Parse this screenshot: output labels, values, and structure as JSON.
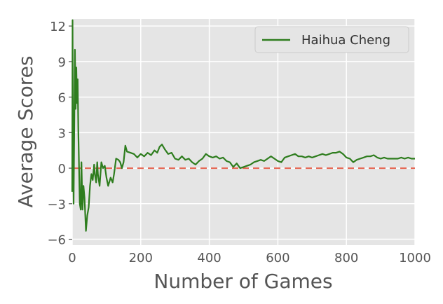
{
  "chart_data": {
    "type": "line",
    "title": "",
    "xlabel": "Number of Games",
    "ylabel": "Average Scores",
    "xlim": [
      0,
      1000
    ],
    "ylim": [
      -6.5,
      12.6
    ],
    "xticks": [
      0,
      200,
      400,
      600,
      800,
      1000
    ],
    "yticks": [
      -6,
      -3,
      0,
      3,
      6,
      9,
      12
    ],
    "ytick_labels": [
      "−6",
      "−3",
      "0",
      "3",
      "6",
      "9",
      "12"
    ],
    "grid": true,
    "legend_position": "top-right",
    "background": "#e5e5e5",
    "reference_line": {
      "y": 0,
      "style": "dashed",
      "color": "#e24a33"
    },
    "series": [
      {
        "name": "Haihua Cheng",
        "color": "#2e7d1e",
        "x": [
          0,
          1,
          2,
          4,
          6,
          8,
          10,
          12,
          14,
          16,
          18,
          20,
          22,
          25,
          27,
          30,
          33,
          36,
          40,
          44,
          48,
          52,
          56,
          60,
          64,
          66,
          70,
          73,
          75,
          80,
          85,
          90,
          95,
          100,
          105,
          112,
          118,
          122,
          128,
          135,
          140,
          145,
          150,
          155,
          160,
          170,
          180,
          190,
          200,
          210,
          220,
          230,
          240,
          248,
          255,
          262,
          270,
          280,
          290,
          300,
          310,
          320,
          330,
          340,
          350,
          360,
          370,
          380,
          390,
          400,
          410,
          420,
          430,
          440,
          450,
          460,
          470,
          480,
          490,
          500,
          510,
          520,
          530,
          540,
          550,
          560,
          570,
          580,
          590,
          600,
          610,
          620,
          630,
          640,
          650,
          660,
          670,
          680,
          690,
          700,
          710,
          720,
          730,
          740,
          750,
          760,
          770,
          780,
          790,
          800,
          810,
          820,
          830,
          840,
          850,
          860,
          870,
          880,
          890,
          900,
          910,
          920,
          930,
          940,
          950,
          960,
          970,
          980,
          990,
          1000
        ],
        "y": [
          -2,
          12.5,
          3,
          -3,
          3,
          10,
          5,
          8.5,
          5.5,
          7.5,
          3,
          0,
          -3,
          -3.5,
          0.5,
          -3.5,
          -1.5,
          -2.5,
          -5.3,
          -4,
          -3.3,
          -1.5,
          -0.5,
          -1,
          0.3,
          -0.5,
          -1.2,
          0.5,
          -0.5,
          -1.5,
          0.5,
          0,
          0.2,
          -0.8,
          -1.5,
          -0.8,
          -1.2,
          -0.5,
          0.8,
          0.7,
          0.5,
          0,
          0.5,
          1.9,
          1.4,
          1.3,
          1.2,
          0.9,
          1.2,
          1,
          1.3,
          1.1,
          1.5,
          1.3,
          1.8,
          2,
          1.6,
          1.2,
          1.3,
          0.8,
          0.7,
          1,
          0.7,
          0.8,
          0.5,
          0.3,
          0.6,
          0.8,
          1.2,
          1,
          0.9,
          1,
          0.8,
          0.9,
          0.6,
          0.5,
          0.1,
          0.4,
          0,
          0.1,
          0.2,
          0.3,
          0.5,
          0.6,
          0.7,
          0.6,
          0.8,
          1,
          0.8,
          0.6,
          0.5,
          0.9,
          1,
          1.1,
          1.2,
          1,
          1,
          0.9,
          1,
          0.9,
          1,
          1.1,
          1.2,
          1.1,
          1.2,
          1.3,
          1.3,
          1.4,
          1.2,
          0.9,
          0.8,
          0.5,
          0.7,
          0.8,
          0.9,
          1,
          1,
          1.1,
          0.9,
          0.8,
          0.9,
          0.8,
          0.8,
          0.8,
          0.8,
          0.9,
          0.8,
          0.9,
          0.8,
          0.8
        ]
      }
    ]
  }
}
